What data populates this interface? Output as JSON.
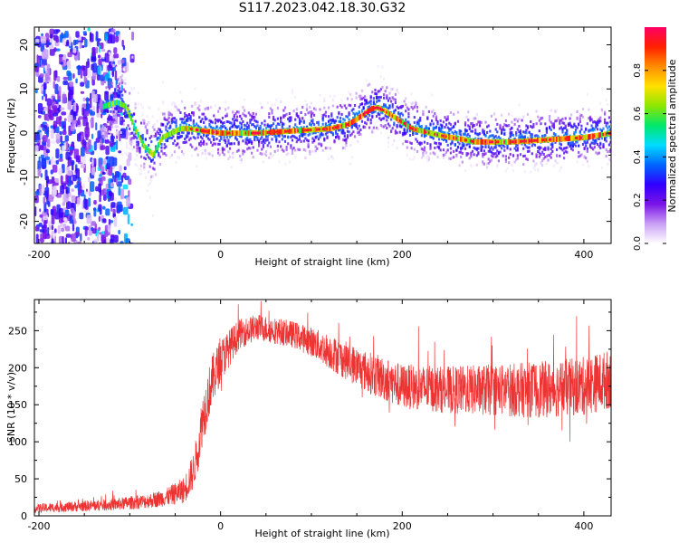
{
  "title": "S117.2023.042.18.30.G32",
  "chart_data": [
    {
      "type": "heatmap",
      "xlabel": "Height of straight line (km)",
      "ylabel": "Frequency (Hz)",
      "xlim": [
        -205,
        430
      ],
      "ylim": [
        -25,
        24
      ],
      "x_ticks": [
        -200,
        0,
        200,
        400
      ],
      "y_ticks": [
        -20,
        -10,
        0,
        10,
        20
      ],
      "colorbar": {
        "label": "Normalized spectral amplitude",
        "range": [
          0,
          1
        ],
        "ticks": [
          "0.0",
          "0.2",
          "0.4",
          "0.6",
          "0.8"
        ],
        "colors": [
          "#ffffff",
          "#c9a0f5",
          "#7a14e6",
          "#3000ff",
          "#0066ff",
          "#00dcff",
          "#00e86a",
          "#8ee600",
          "#ffe000",
          "#ff8c00",
          "#ff2000",
          "#ff0066"
        ]
      },
      "ridge": {
        "x": [
          -130,
          -115,
          -105,
          -95,
          -85,
          -75,
          -65,
          -55,
          -45,
          -35,
          -20,
          0,
          40,
          80,
          120,
          140,
          155,
          165,
          172,
          180,
          195,
          210,
          240,
          280,
          320,
          360,
          400,
          430
        ],
        "freq": [
          6,
          7,
          6,
          1,
          -3,
          -5,
          -1,
          0,
          1,
          1,
          0.5,
          0,
          0,
          0.5,
          1,
          2,
          4,
          5.5,
          5.8,
          5,
          3,
          1,
          -0.5,
          -2,
          -2,
          -1.5,
          -1,
          0
        ]
      },
      "noise_region_km": [
        -205,
        -100
      ]
    },
    {
      "type": "line",
      "xlabel": "Height of straight line (km)",
      "ylabel": "SNR (10 * v/v)",
      "xlim": [
        -205,
        430
      ],
      "ylim": [
        0,
        292
      ],
      "x_ticks": [
        -200,
        0,
        200,
        400
      ],
      "y_ticks": [
        0,
        50,
        100,
        150,
        200,
        250
      ],
      "color": "#ee3333",
      "envelope": {
        "x": [
          -205,
          -120,
          -80,
          -60,
          -40,
          -30,
          -25,
          -20,
          -10,
          0,
          20,
          40,
          60,
          80,
          100,
          130,
          160,
          180,
          200,
          250,
          300,
          350,
          400,
          430
        ],
        "mean": [
          10,
          15,
          20,
          25,
          35,
          60,
          90,
          130,
          180,
          210,
          245,
          255,
          250,
          245,
          235,
          215,
          195,
          185,
          175,
          170,
          170,
          170,
          175,
          185
        ],
        "spread": [
          6,
          8,
          10,
          12,
          18,
          25,
          30,
          35,
          35,
          30,
          20,
          18,
          18,
          18,
          20,
          25,
          28,
          30,
          30,
          32,
          35,
          38,
          40,
          40
        ]
      }
    }
  ]
}
